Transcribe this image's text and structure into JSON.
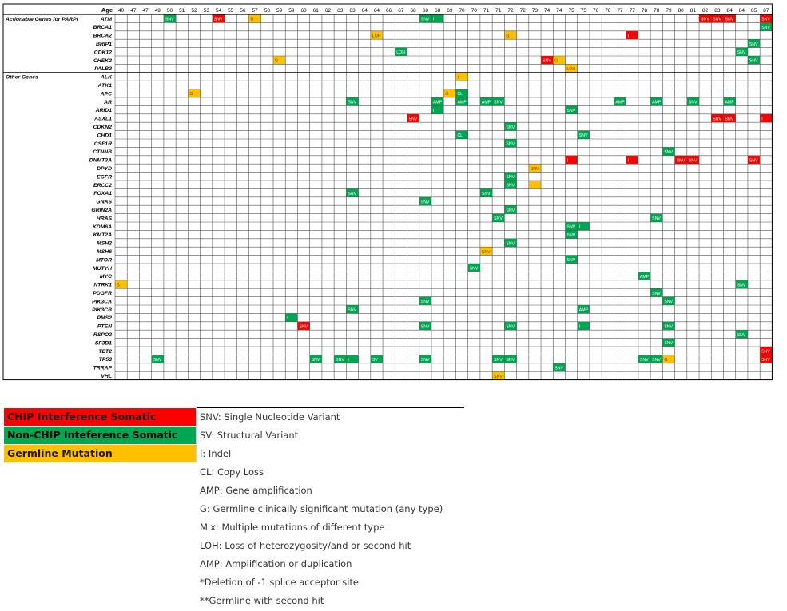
{
  "table": {
    "age_label": "Age",
    "ages": [
      "40",
      "47",
      "47",
      "49",
      "50",
      "51",
      "52",
      "53",
      "54",
      "55",
      "56",
      "57",
      "58",
      "59",
      "59",
      "60",
      "61",
      "62",
      "63",
      "63",
      "64",
      "64",
      "66",
      "67",
      "68",
      "68",
      "68",
      "69",
      "70",
      "70",
      "71",
      "71",
      "72",
      "72",
      "73",
      "74",
      "74",
      "75",
      "75",
      "76",
      "76",
      "77",
      "77",
      "78",
      "78",
      "79",
      "80",
      "81",
      "82",
      "83",
      "84",
      "84",
      "85",
      "87"
    ],
    "actionable_header": "Actionable Genes for PARPi",
    "other_header": "Other Genes",
    "actionable_genes": [
      "ATM",
      "BRCA1",
      "BRCA2",
      "BRIP1",
      "CDK12",
      "CHEK2",
      "PALB2"
    ],
    "other_genes": [
      "ALK",
      "ATK1",
      "APC",
      "AR",
      "ARID1",
      "ASXL1",
      "CDKN2",
      "CHD1",
      "CSF1R",
      "CTNNB",
      "DNMT3A",
      "DPYD",
      "EGFR",
      "ERCC2",
      "FOXA1",
      "GNAS",
      "GRIN2A",
      "HRAS",
      "KDM6A",
      "KMT2A",
      "MSH2",
      "MSH6",
      "MTOR",
      "MUTYH",
      "MYC",
      "NTRK1",
      "PDGFR",
      "PIK3CA",
      "PIK3CB",
      "PMS2",
      "PTEN",
      "RSPO2",
      "SF3B1",
      "TET2",
      "TP53",
      "TRRAP",
      "VHL"
    ],
    "colors": {
      "chip": "#ff0000",
      "nonchip": "#00a651",
      "germline": "#ffc000"
    },
    "mutations": [
      {
        "gene": "ATM",
        "col": 4,
        "type": "nonchip",
        "label": "SNV"
      },
      {
        "gene": "ATM",
        "col": 8,
        "type": "chip",
        "label": "SNV"
      },
      {
        "gene": "ATM",
        "col": 11,
        "type": "germline",
        "label": "G"
      },
      {
        "gene": "ATM",
        "col": 25,
        "type": "nonchip",
        "label": "SNV"
      },
      {
        "gene": "ATM",
        "col": 26,
        "type": "nonchip",
        "label": "I"
      },
      {
        "gene": "ATM",
        "col": 48,
        "type": "chip",
        "label": "SNV"
      },
      {
        "gene": "ATM",
        "col": 49,
        "type": "chip",
        "label": "SNV"
      },
      {
        "gene": "ATM",
        "col": 50,
        "type": "chip",
        "label": "SNV"
      },
      {
        "gene": "ATM",
        "col": 53,
        "type": "chip",
        "label": "SNV"
      },
      {
        "gene": "BRCA1",
        "col": 53,
        "type": "nonchip",
        "label": "SNV"
      },
      {
        "gene": "BRCA2",
        "col": 21,
        "type": "germline",
        "label": "LOH"
      },
      {
        "gene": "BRCA2",
        "col": 32,
        "type": "germline",
        "label": "G"
      },
      {
        "gene": "BRCA2",
        "col": 42,
        "type": "chip",
        "label": "I"
      },
      {
        "gene": "BRIP1",
        "col": 52,
        "type": "nonchip",
        "label": "SNV"
      },
      {
        "gene": "CDK12",
        "col": 23,
        "type": "nonchip",
        "label": "LOH"
      },
      {
        "gene": "CDK12",
        "col": 51,
        "type": "nonchip",
        "label": "SNV"
      },
      {
        "gene": "CHEK2",
        "col": 13,
        "type": "germline",
        "label": "G"
      },
      {
        "gene": "CHEK2",
        "col": 35,
        "type": "chip",
        "label": "SNV"
      },
      {
        "gene": "CHEK2",
        "col": 36,
        "type": "germline",
        "label": "G"
      },
      {
        "gene": "CHEK2",
        "col": 52,
        "type": "nonchip",
        "label": "SNV"
      },
      {
        "gene": "PALB2",
        "col": 37,
        "type": "germline",
        "label": "LOH"
      },
      {
        "gene": "ALK",
        "col": 28,
        "type": "germline",
        "label": "I"
      },
      {
        "gene": "APC",
        "col": 6,
        "type": "germline",
        "label": "G"
      },
      {
        "gene": "APC",
        "col": 27,
        "type": "germline",
        "label": "G"
      },
      {
        "gene": "APC",
        "col": 28,
        "type": "nonchip",
        "label": "CL"
      },
      {
        "gene": "AR",
        "col": 19,
        "type": "nonchip",
        "label": "SNV"
      },
      {
        "gene": "AR",
        "col": 26,
        "type": "nonchip",
        "label": "AMP"
      },
      {
        "gene": "AR",
        "col": 28,
        "type": "nonchip",
        "label": "AMP"
      },
      {
        "gene": "AR",
        "col": 30,
        "type": "nonchip",
        "label": "AMP"
      },
      {
        "gene": "AR",
        "col": 31,
        "type": "nonchip",
        "label": "SNV"
      },
      {
        "gene": "AR",
        "col": 41,
        "type": "nonchip",
        "label": "AMP"
      },
      {
        "gene": "AR",
        "col": 44,
        "type": "nonchip",
        "label": "AMP"
      },
      {
        "gene": "AR",
        "col": 47,
        "type": "nonchip",
        "label": "SNV"
      },
      {
        "gene": "AR",
        "col": 50,
        "type": "nonchip",
        "label": "AMP"
      },
      {
        "gene": "ARID1",
        "col": 26,
        "type": "nonchip",
        "label": "I"
      },
      {
        "gene": "ARID1",
        "col": 37,
        "type": "nonchip",
        "label": "SNV"
      },
      {
        "gene": "ASXL1",
        "col": 24,
        "type": "chip",
        "label": "SNV"
      },
      {
        "gene": "ASXL1",
        "col": 49,
        "type": "chip",
        "label": "SNV"
      },
      {
        "gene": "ASXL1",
        "col": 50,
        "type": "chip",
        "label": "SNV"
      },
      {
        "gene": "ASXL1",
        "col": 53,
        "type": "chip",
        "label": "I"
      },
      {
        "gene": "CDKN2",
        "col": 32,
        "type": "nonchip",
        "label": "SNV"
      },
      {
        "gene": "CHD1",
        "col": 28,
        "type": "nonchip",
        "label": "CL"
      },
      {
        "gene": "CHD1",
        "col": 38,
        "type": "nonchip",
        "label": "SNV"
      },
      {
        "gene": "CSF1R",
        "col": 32,
        "type": "nonchip",
        "label": "SNV"
      },
      {
        "gene": "CTNNB",
        "col": 45,
        "type": "nonchip",
        "label": "SNV"
      },
      {
        "gene": "DNMT3A",
        "col": 37,
        "type": "chip",
        "label": "I"
      },
      {
        "gene": "DNMT3A",
        "col": 42,
        "type": "chip",
        "label": "I"
      },
      {
        "gene": "DNMT3A",
        "col": 46,
        "type": "chip",
        "label": "SNV"
      },
      {
        "gene": "DNMT3A",
        "col": 47,
        "type": "chip",
        "label": "SNV"
      },
      {
        "gene": "DNMT3A",
        "col": 52,
        "type": "chip",
        "label": "SNV"
      },
      {
        "gene": "DPYD",
        "col": 34,
        "type": "germline",
        "label": "SNV"
      },
      {
        "gene": "EGFR",
        "col": 32,
        "type": "nonchip",
        "label": "SNV"
      },
      {
        "gene": "ERCC2",
        "col": 32,
        "type": "nonchip",
        "label": "SNV"
      },
      {
        "gene": "ERCC2",
        "col": 34,
        "type": "germline",
        "label": "I"
      },
      {
        "gene": "FOXA1",
        "col": 19,
        "type": "nonchip",
        "label": "SNV"
      },
      {
        "gene": "FOXA1",
        "col": 30,
        "type": "nonchip",
        "label": "SNV"
      },
      {
        "gene": "GNAS",
        "col": 25,
        "type": "nonchip",
        "label": "SNV"
      },
      {
        "gene": "GRIN2A",
        "col": 32,
        "type": "nonchip",
        "label": "SNV"
      },
      {
        "gene": "HRAS",
        "col": 31,
        "type": "nonchip",
        "label": "SNV"
      },
      {
        "gene": "HRAS",
        "col": 44,
        "type": "nonchip",
        "label": "SNV"
      },
      {
        "gene": "KDM6A",
        "col": 37,
        "type": "nonchip",
        "label": "SNV"
      },
      {
        "gene": "KDM6A",
        "col": 38,
        "type": "nonchip",
        "label": "I"
      },
      {
        "gene": "KMT2A",
        "col": 37,
        "type": "nonchip",
        "label": "SNV"
      },
      {
        "gene": "MSH2",
        "col": 32,
        "type": "nonchip",
        "label": "SNV"
      },
      {
        "gene": "MSH6",
        "col": 30,
        "type": "germline",
        "label": "SNV"
      },
      {
        "gene": "MTOR",
        "col": 37,
        "type": "nonchip",
        "label": "SNV"
      },
      {
        "gene": "MUTYH",
        "col": 29,
        "type": "nonchip",
        "label": "SNV"
      },
      {
        "gene": "MYC",
        "col": 43,
        "type": "nonchip",
        "label": "AMP"
      },
      {
        "gene": "NTRK1",
        "col": 0,
        "type": "germline",
        "label": "G"
      },
      {
        "gene": "NTRK1",
        "col": 51,
        "type": "nonchip",
        "label": "SNV"
      },
      {
        "gene": "PDGFR",
        "col": 44,
        "type": "nonchip",
        "label": "SNV"
      },
      {
        "gene": "PIK3CA",
        "col": 25,
        "type": "nonchip",
        "label": "SNV"
      },
      {
        "gene": "PIK3CA",
        "col": 45,
        "type": "nonchip",
        "label": "SNV"
      },
      {
        "gene": "PIK3CB",
        "col": 19,
        "type": "nonchip",
        "label": "SNV"
      },
      {
        "gene": "PIK3CB",
        "col": 38,
        "type": "nonchip",
        "label": "AMP"
      },
      {
        "gene": "PMS2",
        "col": 14,
        "type": "nonchip",
        "label": "I"
      },
      {
        "gene": "PTEN",
        "col": 15,
        "type": "chip",
        "label": "SNV"
      },
      {
        "gene": "PTEN",
        "col": 25,
        "type": "nonchip",
        "label": "SNV"
      },
      {
        "gene": "PTEN",
        "col": 32,
        "type": "nonchip",
        "label": "SNV"
      },
      {
        "gene": "PTEN",
        "col": 38,
        "type": "nonchip",
        "label": "I"
      },
      {
        "gene": "PTEN",
        "col": 45,
        "type": "nonchip",
        "label": "SNV"
      },
      {
        "gene": "RSPO2",
        "col": 51,
        "type": "nonchip",
        "label": "SNV"
      },
      {
        "gene": "SF3B1",
        "col": 45,
        "type": "nonchip",
        "label": "SNV"
      },
      {
        "gene": "TET2",
        "col": 53,
        "type": "chip",
        "label": "SNV"
      },
      {
        "gene": "TP53",
        "col": 3,
        "type": "nonchip",
        "label": "SNV"
      },
      {
        "gene": "TP53",
        "col": 16,
        "type": "nonchip",
        "label": "SNV"
      },
      {
        "gene": "TP53",
        "col": 18,
        "type": "nonchip",
        "label": "SNV"
      },
      {
        "gene": "TP53",
        "col": 19,
        "type": "nonchip",
        "label": "I"
      },
      {
        "gene": "TP53",
        "col": 21,
        "type": "nonchip",
        "label": "SV"
      },
      {
        "gene": "TP53",
        "col": 25,
        "type": "nonchip",
        "label": "SNV"
      },
      {
        "gene": "TP53",
        "col": 31,
        "type": "nonchip",
        "label": "SNV"
      },
      {
        "gene": "TP53",
        "col": 32,
        "type": "nonchip",
        "label": "SNV"
      },
      {
        "gene": "TP53",
        "col": 43,
        "type": "nonchip",
        "label": "SNV"
      },
      {
        "gene": "TP53",
        "col": 44,
        "type": "nonchip",
        "label": "SNV"
      },
      {
        "gene": "TP53",
        "col": 45,
        "type": "germline",
        "label": "G"
      },
      {
        "gene": "TP53",
        "col": 53,
        "type": "chip",
        "label": "SNV"
      },
      {
        "gene": "TRRAP",
        "col": 36,
        "type": "nonchip",
        "label": "SNV"
      },
      {
        "gene": "VHL",
        "col": 31,
        "type": "germline",
        "label": "SNV"
      }
    ]
  },
  "legend": {
    "chip_label": "CHIP Interference Somatic",
    "nonchip_label": "Non-CHIP Inteference Somatic",
    "germline_label": "Germline Mutation",
    "abbreviations": [
      "SNV: Single Nucleotide Variant",
      "SV: Structural Variant",
      "I: Indel",
      "CL: Copy Loss",
      "AMP: Gene amplification",
      "G: Germline clinically significant mutation (any type)",
      "Mix: Multiple mutations of different type",
      "LOH: Loss of heterozygosity/and or second hit",
      "AMP: Amplification or duplication",
      "*Deletion of -1 splice acceptor site",
      "**Germline with second hit"
    ]
  }
}
